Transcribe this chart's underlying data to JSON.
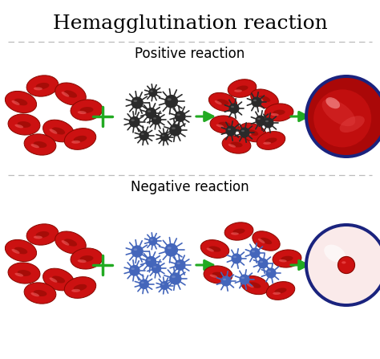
{
  "title": "Hemagglutination reaction",
  "positive_label": "Positive reaction",
  "negative_label": "Negative reaction",
  "background_color": "#ffffff",
  "title_fontsize": 18,
  "label_fontsize": 12,
  "rbc_color_main": "#cc1111",
  "rbc_color_dark": "#880800",
  "rbc_highlight": "#ff7777",
  "antigen_pos_color": "#2a2a2a",
  "antigen_neg_color": "#4466bb",
  "arrow_color": "#22aa22",
  "divider_color": "#bbbbbb",
  "positive_well_border": "#1a237e",
  "negative_well_bg": "#faeaea",
  "negative_well_border": "#1a237e",
  "negative_well_dot": "#cc1111"
}
